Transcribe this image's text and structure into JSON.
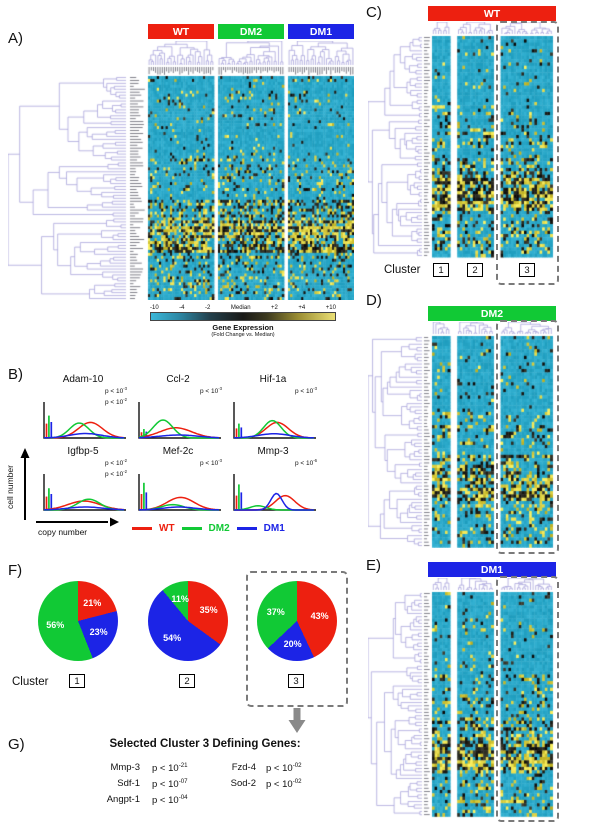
{
  "figure": {
    "palette": {
      "red": "#ed2010",
      "green": "#11c935",
      "blue": "#1c24e6",
      "dendrogram": "#a49fd9",
      "heatmap_base": "#29a7c8",
      "dash_gray": "#7a7a7a"
    },
    "panel_a": {
      "label": "A)",
      "groups": [
        {
          "name": "WT"
        },
        {
          "name": "DM2"
        },
        {
          "name": "DM1"
        }
      ],
      "colorbar": {
        "ticks": [
          "-10",
          "-4",
          "-2",
          "Median",
          "+2",
          "+4",
          "+10"
        ],
        "title": "Gene Expression",
        "subtitle": "(Fold Change vs. Median)"
      }
    },
    "panel_b": {
      "label": "B)",
      "ylabel": "cell number",
      "xlabel": "copy number",
      "plots": [
        {
          "gene": "Adam-10",
          "pvals": [
            {
              "base": "p < 10",
              "exp": "-3"
            },
            {
              "base": "p < 10",
              "exp": "-2"
            }
          ]
        },
        {
          "gene": "Ccl-2",
          "pvals": [
            {
              "base": "p < 10",
              "exp": "-3"
            }
          ]
        },
        {
          "gene": "Hif-1a",
          "pvals": [
            {
              "base": "p < 10",
              "exp": "-3"
            }
          ]
        },
        {
          "gene": "Igfbp-5",
          "pvals": [
            {
              "base": "p < 10",
              "exp": "-2"
            },
            {
              "base": "p < 10",
              "exp": "-2"
            }
          ]
        },
        {
          "gene": "Mef-2c",
          "pvals": [
            {
              "base": "p < 10",
              "exp": "-3"
            }
          ]
        },
        {
          "gene": "Mmp-3",
          "pvals": [
            {
              "base": "p < 10",
              "exp": "-6"
            }
          ]
        }
      ],
      "legend": [
        {
          "name": "WT"
        },
        {
          "name": "DM2"
        },
        {
          "name": "DM1"
        }
      ]
    },
    "panel_c": {
      "label": "C)",
      "title": "WT",
      "cluster_caption": "Cluster",
      "clusters": [
        "1",
        "2",
        "3"
      ]
    },
    "panel_d": {
      "label": "D)",
      "title": "DM2"
    },
    "panel_e": {
      "label": "E)",
      "title": "DM1"
    },
    "panel_f": {
      "label": "F)",
      "cluster_caption": "Cluster",
      "pies": [
        {
          "cluster": "1"
        },
        {
          "cluster": "2"
        },
        {
          "cluster": "3"
        }
      ]
    },
    "panel_g": {
      "label": "G)",
      "title": "Selected Cluster 3 Defining Genes:",
      "columns": [
        [
          {
            "gene": "Mmp-3",
            "base": "p < 10",
            "exp": "-21"
          },
          {
            "gene": "Sdf-1",
            "base": "p < 10",
            "exp": "-07"
          },
          {
            "gene": "Angpt-1",
            "base": "p < 10",
            "exp": "-04"
          }
        ],
        [
          {
            "gene": "Fzd-4",
            "base": "p < 10",
            "exp": "-02"
          },
          {
            "gene": "Sod-2",
            "base": "p < 10",
            "exp": "-02"
          }
        ]
      ]
    }
  },
  "chart_data": [
    {
      "type": "heatmap",
      "panel": "A",
      "title": "Hierarchically clustered gene expression heatmap of WT, DM2 and DM1 samples",
      "column_groups": [
        "WT",
        "DM2",
        "DM1"
      ],
      "colorbar": {
        "label": "Gene Expression (Fold Change vs. Median)",
        "tick_labels": [
          "-10",
          "-4",
          "-2",
          "Median",
          "+2",
          "+4",
          "+10"
        ],
        "low_color": "#29a7c8",
        "mid_color": "#1a1a17",
        "high_color": "#efe276"
      }
    },
    {
      "type": "line",
      "panel": "B",
      "xlabel": "copy number",
      "ylabel": "cell number",
      "series_names": [
        "WT",
        "DM2",
        "DM1"
      ],
      "series_colors": {
        "WT": "#ed2010",
        "DM2": "#11c935",
        "DM1": "#1c24e6"
      },
      "subplots": [
        {
          "gene": "Adam-10",
          "p_values": [
            "p < 10^-3",
            "p < 10^-2"
          ],
          "curves": {
            "WT": {
              "mean": 0.58,
              "sd": 0.15,
              "peak": 0.52
            },
            "DM2": {
              "mean": 0.44,
              "sd": 0.12,
              "peak": 0.5
            },
            "DM1": {
              "mean": 0.52,
              "sd": 0.2,
              "peak": 0.15
            }
          },
          "zero_spike": {
            "WT": 0.45,
            "DM2": 0.7,
            "DM1": 0.5
          }
        },
        {
          "gene": "Ccl-2",
          "p_values": [
            "p < 10^-3"
          ],
          "curves": {
            "WT": {
              "mean": 0.46,
              "sd": 0.2,
              "peak": 0.34
            },
            "DM2": {
              "mean": 0.3,
              "sd": 0.12,
              "peak": 0.6
            },
            "DM1": {
              "mean": 0.5,
              "sd": 0.24,
              "peak": 0.1
            }
          },
          "zero_spike": {
            "WT": 0.18,
            "DM2": 0.28,
            "DM1": 0.2
          }
        },
        {
          "gene": "Hif-1a",
          "p_values": [
            "p < 10^-3"
          ],
          "curves": {
            "WT": {
              "mean": 0.54,
              "sd": 0.14,
              "peak": 0.52
            },
            "DM2": {
              "mean": 0.48,
              "sd": 0.11,
              "peak": 0.58
            },
            "DM1": {
              "mean": 0.5,
              "sd": 0.2,
              "peak": 0.14
            }
          },
          "zero_spike": {
            "WT": 0.3,
            "DM2": 0.45,
            "DM1": 0.33
          }
        },
        {
          "gene": "Igfbp-5",
          "p_values": [
            "p < 10^-2",
            "p < 10^-2"
          ],
          "curves": {
            "WT": {
              "mean": 0.5,
              "sd": 0.2,
              "peak": 0.3
            },
            "DM2": {
              "mean": 0.56,
              "sd": 0.14,
              "peak": 0.36
            },
            "DM1": {
              "mean": 0.52,
              "sd": 0.22,
              "peak": 0.1
            }
          },
          "zero_spike": {
            "WT": 0.42,
            "DM2": 0.68,
            "DM1": 0.5
          }
        },
        {
          "gene": "Mef-2c",
          "p_values": [
            "p < 10^-3"
          ],
          "curves": {
            "WT": {
              "mean": 0.52,
              "sd": 0.17,
              "peak": 0.42
            },
            "DM2": {
              "mean": 0.42,
              "sd": 0.14,
              "peak": 0.18
            },
            "DM1": {
              "mean": 0.5,
              "sd": 0.2,
              "peak": 0.1
            }
          },
          "zero_spike": {
            "WT": 0.5,
            "DM2": 0.85,
            "DM1": 0.55
          }
        },
        {
          "gene": "Mmp-3",
          "p_values": [
            "p < 10^-6"
          ],
          "curves": {
            "WT": {
              "mean": 0.64,
              "sd": 0.12,
              "peak": 0.48
            },
            "DM2": {
              "mean": 0.3,
              "sd": 0.1,
              "peak": 0.14
            },
            "DM1": {
              "mean": 0.53,
              "sd": 0.07,
              "peak": 0.55
            }
          },
          "zero_spike": {
            "WT": 0.45,
            "DM2": 0.8,
            "DM1": 0.55
          }
        }
      ]
    },
    {
      "type": "pie",
      "panel": "F",
      "charts": [
        {
          "cluster": "1",
          "slices": [
            {
              "name": "WT",
              "value": 21,
              "color": "#ed2010"
            },
            {
              "name": "DM1",
              "value": 23,
              "color": "#1c24e6"
            },
            {
              "name": "DM2",
              "value": 56,
              "color": "#11c935"
            }
          ]
        },
        {
          "cluster": "2",
          "slices": [
            {
              "name": "WT",
              "value": 35,
              "color": "#ed2010"
            },
            {
              "name": "DM1",
              "value": 54,
              "color": "#1c24e6"
            },
            {
              "name": "DM2",
              "value": 11,
              "color": "#11c935"
            }
          ]
        },
        {
          "cluster": "3",
          "slices": [
            {
              "name": "WT",
              "value": 43,
              "color": "#ed2010"
            },
            {
              "name": "DM1",
              "value": 20,
              "color": "#1c24e6"
            },
            {
              "name": "DM2",
              "value": 37,
              "color": "#11c935"
            }
          ]
        }
      ]
    },
    {
      "type": "heatmap",
      "panel": "C",
      "title": "WT",
      "clusters": [
        "1",
        "2",
        "3"
      ],
      "highlighted_cluster": "3"
    },
    {
      "type": "heatmap",
      "panel": "D",
      "title": "DM2",
      "highlighted_cluster": "3"
    },
    {
      "type": "heatmap",
      "panel": "E",
      "title": "DM1",
      "highlighted_cluster": "3"
    }
  ]
}
